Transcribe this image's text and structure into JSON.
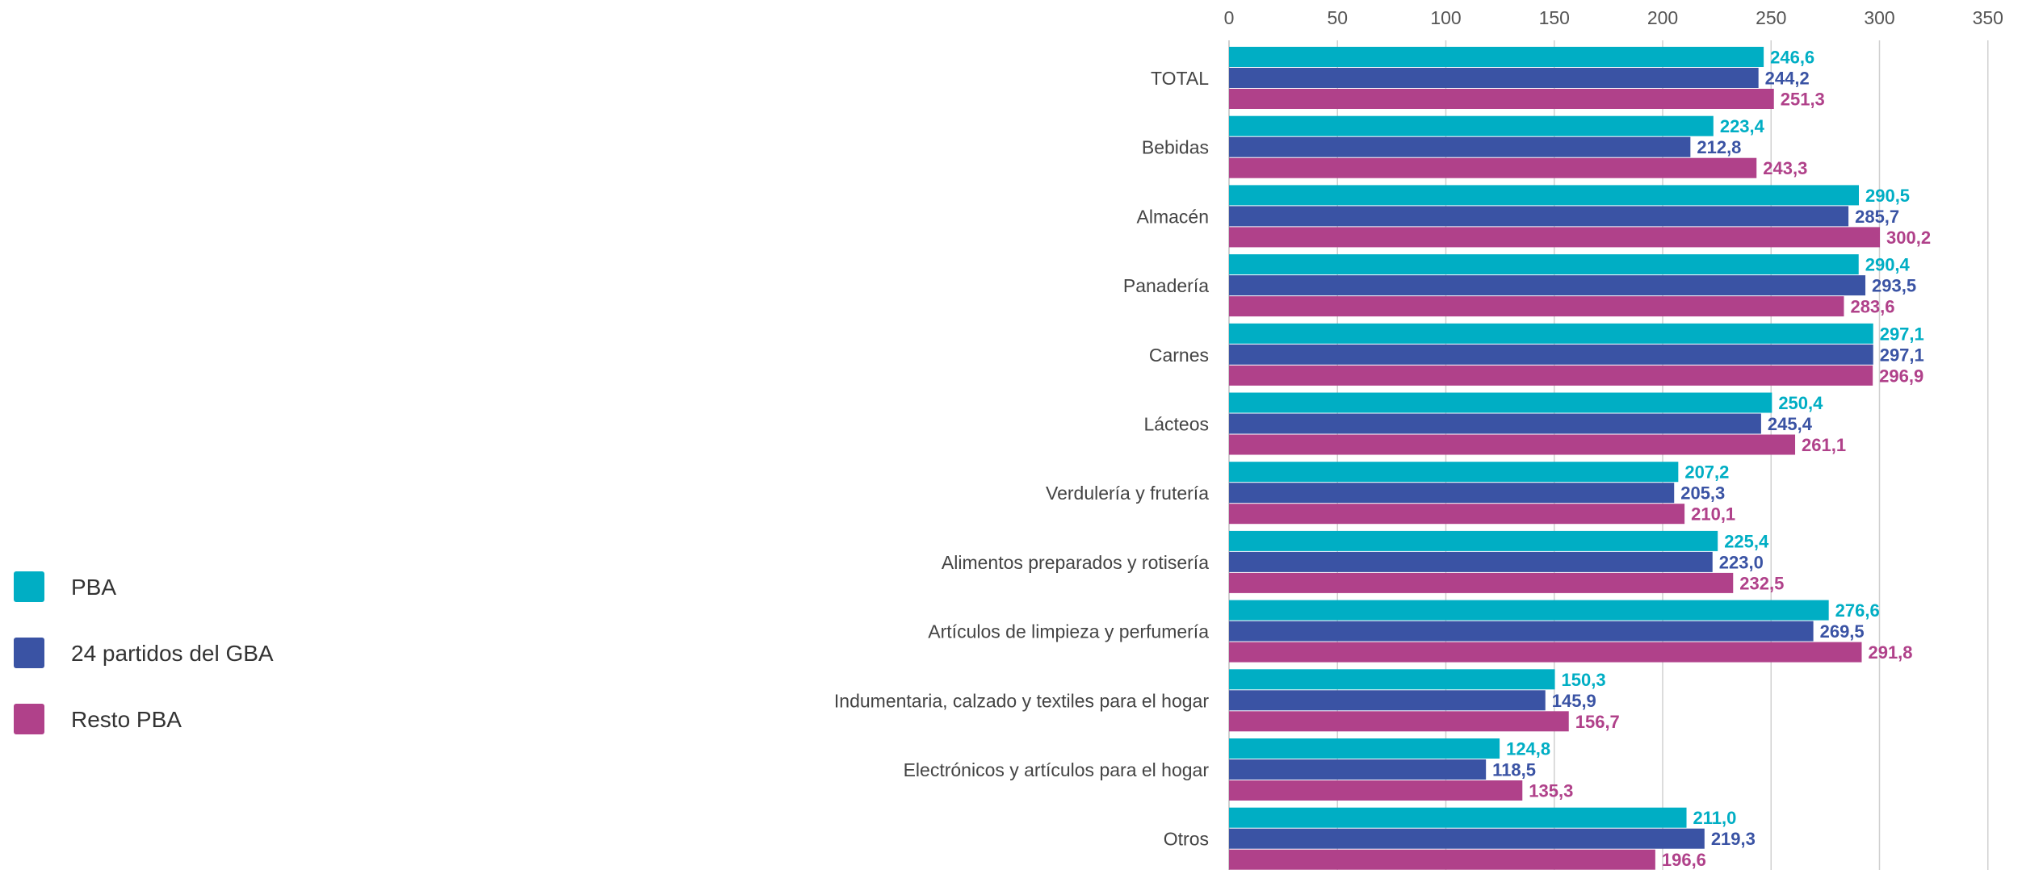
{
  "chart_data": {
    "type": "bar",
    "orientation": "horizontal",
    "categories": [
      "TOTAL",
      "Bebidas",
      "Almacén",
      "Panadería",
      "Carnes",
      "Lácteos",
      "Verdulería y frutería",
      "Alimentos preparados y rotisería",
      "Artículos de limpieza y perfumería",
      "Indumentaria, calzado y textiles para el hogar",
      "Electrónicos y artículos para el hogar",
      "Otros"
    ],
    "series": [
      {
        "name": "PBA",
        "color": "#00AEC4",
        "values": [
          246.6,
          223.4,
          290.5,
          290.4,
          297.1,
          250.4,
          207.2,
          225.4,
          276.6,
          150.3,
          124.8,
          211.0
        ],
        "labels": [
          "246,6",
          "223,4",
          "290,5",
          "290,4",
          "297,1",
          "250,4",
          "207,2",
          "225,4",
          "276,6",
          "150,3",
          "124,8",
          "211,0"
        ]
      },
      {
        "name": "24 partidos del GBA",
        "color": "#3A53A4",
        "values": [
          244.2,
          212.8,
          285.7,
          293.5,
          297.1,
          245.4,
          205.3,
          223.0,
          269.5,
          145.9,
          118.5,
          219.3
        ],
        "labels": [
          "244,2",
          "212,8",
          "285,7",
          "293,5",
          "297,1",
          "245,4",
          "205,3",
          "223,0",
          "269,5",
          "145,9",
          "118,5",
          "219,3"
        ]
      },
      {
        "name": "Resto PBA",
        "color": "#B0418A",
        "values": [
          251.3,
          243.3,
          300.2,
          283.6,
          296.9,
          261.1,
          210.1,
          232.5,
          291.8,
          156.7,
          135.3,
          196.6
        ],
        "labels": [
          "251,3",
          "243,3",
          "300,2",
          "283,6",
          "296,9",
          "261,1",
          "210,1",
          "232,5",
          "291,8",
          "156,7",
          "135,3",
          "196,6"
        ]
      }
    ],
    "xlim": [
      0,
      350
    ],
    "xticks": [
      0,
      50,
      100,
      150,
      200,
      250,
      300,
      350
    ],
    "x_axis_position": "top",
    "grid": true,
    "legend_position": "left",
    "title": "",
    "xlabel": "",
    "ylabel": ""
  }
}
